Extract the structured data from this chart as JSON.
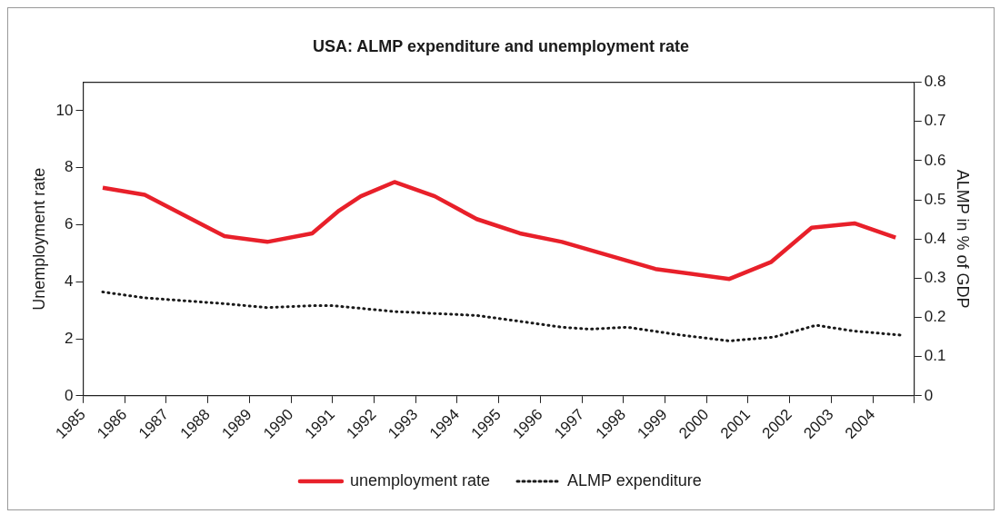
{
  "chart_data": {
    "type": "line",
    "title": "USA: ALMP expenditure and unemployment rate",
    "ylabel": "Unemployment rate",
    "y2label": "ALMP in % of GDP",
    "xlim": [
      1985,
      2005
    ],
    "xticks": [
      1985,
      1986,
      1987,
      1988,
      1989,
      1990,
      1991,
      1992,
      1993,
      1994,
      1995,
      1996,
      1997,
      1998,
      1999,
      2000,
      2001,
      2002,
      2003,
      2004,
      {
        "value": 2005,
        "label": null
      }
    ],
    "ylim": [
      0,
      11
    ],
    "yticks": [
      0,
      2,
      4,
      6,
      8,
      10
    ],
    "y2lim": [
      0,
      0.8
    ],
    "y2ticks": [
      0,
      0.1,
      0.2,
      0.3,
      0.4,
      0.5,
      0.6,
      0.7,
      0.8
    ],
    "grid": false,
    "legend": "bottom",
    "marker": "none",
    "series": [
      {
        "name": "unemployment rate",
        "color": "#e8202a",
        "line_style": "solid",
        "x": [
          1985.47,
          1986.48,
          1988.4,
          1989.43,
          1990.51,
          1991.16,
          1991.68,
          1992.49,
          1993.46,
          1994.47,
          1995.51,
          1996.52,
          1998.77,
          2000.55,
          2001.56,
          2002.53,
          2003.56,
          2004.55
        ],
        "values": [
          7.3,
          7.05,
          5.6,
          5.4,
          5.7,
          6.5,
          7.0,
          7.5,
          7.0,
          6.2,
          5.7,
          5.4,
          4.45,
          4.1,
          4.7,
          5.9,
          6.05,
          5.55
        ]
      },
      {
        "name": "ALMP expenditure",
        "color": "#1a1a1a",
        "line_style": "dotted",
        "axis": "y2",
        "x": [
          1985.47,
          1986.48,
          1988.4,
          1989.43,
          1990.51,
          1991.0,
          1992.49,
          1993.46,
          1994.47,
          1995.51,
          1996.52,
          1997.19,
          1998.09,
          1999.38,
          2000.55,
          2001.63,
          2002.64,
          2003.56,
          2004.66
        ],
        "values": [
          0.265,
          0.25,
          0.235,
          0.225,
          0.23,
          0.23,
          0.215,
          0.21,
          0.205,
          0.19,
          0.175,
          0.17,
          0.175,
          0.155,
          0.14,
          0.15,
          0.18,
          0.165,
          0.155
        ]
      }
    ]
  }
}
